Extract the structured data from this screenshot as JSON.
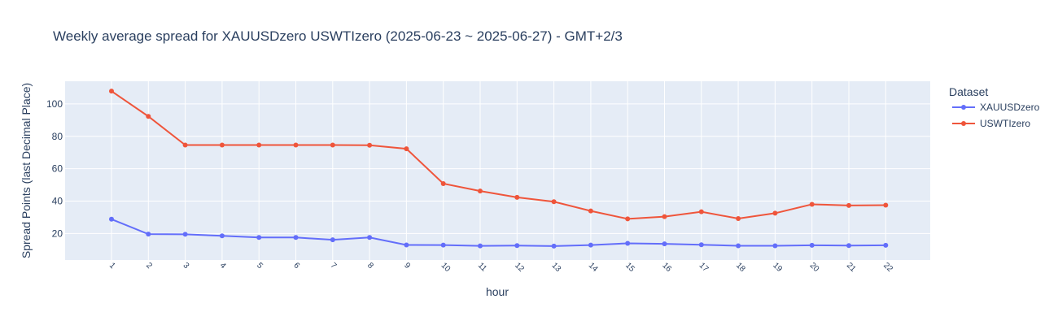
{
  "chart_data": {
    "type": "line",
    "title": "Weekly average spread for  XAUUSDzero USWTIzero (2025-06-23 ~ 2025-06-27) - GMT+2/3",
    "xlabel": "hour",
    "ylabel": "Spread Points (last Decimal Place)",
    "ylim": [
      3.6,
      114
    ],
    "yticks": [
      20,
      40,
      60,
      80,
      100
    ],
    "grid": true,
    "legend_title": "Dataset",
    "legend_position": "right",
    "x": [
      1,
      2,
      3,
      4,
      5,
      6,
      7,
      8,
      9,
      10,
      11,
      12,
      13,
      14,
      15,
      16,
      17,
      18,
      19,
      20,
      21,
      22
    ],
    "series": [
      {
        "name": "XAUUSDzero",
        "color": "#636efa",
        "values": [
          28.8,
          19.6,
          19.5,
          18.5,
          17.5,
          17.5,
          16.1,
          17.5,
          12.9,
          12.8,
          12.3,
          12.5,
          12.2,
          12.8,
          13.9,
          13.6,
          13.0,
          12.4,
          12.4,
          12.7,
          12.5,
          12.7
        ]
      },
      {
        "name": "USWTIzero",
        "color": "#ef553b",
        "values": [
          107.9,
          92.3,
          74.6,
          74.6,
          74.6,
          74.6,
          74.6,
          74.5,
          72.3,
          50.8,
          46.2,
          42.3,
          39.6,
          33.9,
          29.0,
          30.4,
          33.4,
          29.2,
          32.5,
          38.0,
          37.3,
          37.5
        ]
      }
    ]
  }
}
